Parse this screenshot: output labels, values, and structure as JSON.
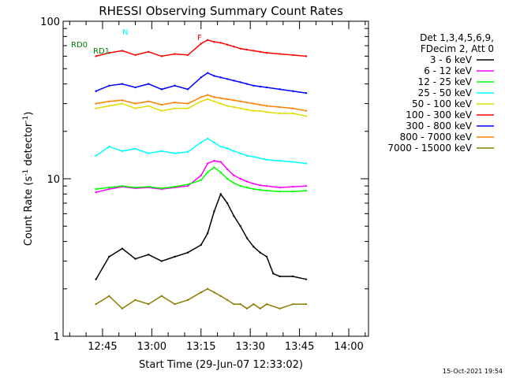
{
  "chart_data": {
    "type": "line",
    "title": "RHESSI Observing Summary Count Rates",
    "xlabel": "Start Time (29-Jun-07 12:33:02)",
    "ylabel_main": "Count Rate (s",
    "ylabel_sup": "-1",
    "ylabel_end": " detector",
    "ylabel_close": ")",
    "yscale": "log",
    "ylim": [
      1,
      100
    ],
    "xlim_minutes": [
      0,
      93
    ],
    "x_tick_labels": [
      "12:45",
      "13:00",
      "13:15",
      "13:30",
      "13:45",
      "14:00"
    ],
    "x_tick_minutes": [
      12,
      27,
      42,
      57,
      72,
      87
    ],
    "y_tick_labels": [
      "1",
      "10",
      "100"
    ],
    "y_tick_values": [
      1,
      10,
      100
    ],
    "legend": {
      "header": [
        "Det 1,3,4,5,6,9,",
        "FDecim 2, Att 0"
      ],
      "placement": "right"
    },
    "series": [
      {
        "name": "3 - 6 keV",
        "color": "#000000",
        "points": [
          [
            10,
            2.3
          ],
          [
            14,
            3.2
          ],
          [
            18,
            3.6
          ],
          [
            22,
            3.1
          ],
          [
            26,
            3.3
          ],
          [
            30,
            3.0
          ],
          [
            34,
            3.2
          ],
          [
            38,
            3.4
          ],
          [
            42,
            3.8
          ],
          [
            44,
            4.5
          ],
          [
            46,
            6.2
          ],
          [
            48,
            8.0
          ],
          [
            50,
            7.0
          ],
          [
            52,
            5.8
          ],
          [
            54,
            5.0
          ],
          [
            56,
            4.2
          ],
          [
            58,
            3.7
          ],
          [
            60,
            3.4
          ],
          [
            62,
            3.2
          ],
          [
            64,
            2.5
          ],
          [
            66,
            2.4
          ],
          [
            70,
            2.4
          ],
          [
            74,
            2.3
          ]
        ]
      },
      {
        "name": "6 - 12 keV",
        "color": "#ff00ff",
        "points": [
          [
            10,
            8.2
          ],
          [
            14,
            8.6
          ],
          [
            18,
            8.9
          ],
          [
            22,
            8.7
          ],
          [
            26,
            8.8
          ],
          [
            30,
            8.6
          ],
          [
            34,
            8.8
          ],
          [
            38,
            9.0
          ],
          [
            42,
            10.5
          ],
          [
            44,
            12.5
          ],
          [
            46,
            13.0
          ],
          [
            48,
            12.8
          ],
          [
            50,
            11.5
          ],
          [
            52,
            10.5
          ],
          [
            54,
            10.0
          ],
          [
            56,
            9.6
          ],
          [
            58,
            9.3
          ],
          [
            60,
            9.1
          ],
          [
            62,
            9.0
          ],
          [
            66,
            8.8
          ],
          [
            70,
            8.9
          ],
          [
            74,
            9.0
          ]
        ]
      },
      {
        "name": "12 - 25 keV",
        "color": "#00ff00",
        "points": [
          [
            10,
            8.6
          ],
          [
            14,
            8.8
          ],
          [
            18,
            9.0
          ],
          [
            22,
            8.8
          ],
          [
            26,
            8.9
          ],
          [
            30,
            8.7
          ],
          [
            34,
            8.9
          ],
          [
            38,
            9.2
          ],
          [
            42,
            9.8
          ],
          [
            44,
            11.0
          ],
          [
            46,
            11.8
          ],
          [
            48,
            11.0
          ],
          [
            50,
            10.0
          ],
          [
            52,
            9.4
          ],
          [
            54,
            9.0
          ],
          [
            56,
            8.8
          ],
          [
            58,
            8.6
          ],
          [
            60,
            8.5
          ],
          [
            62,
            8.4
          ],
          [
            66,
            8.3
          ],
          [
            70,
            8.3
          ],
          [
            74,
            8.4
          ]
        ]
      },
      {
        "name": "25 - 50 keV",
        "color": "#00ffff",
        "points": [
          [
            10,
            14
          ],
          [
            14,
            16
          ],
          [
            18,
            15
          ],
          [
            22,
            15.5
          ],
          [
            26,
            14.5
          ],
          [
            30,
            15
          ],
          [
            34,
            14.5
          ],
          [
            38,
            14.8
          ],
          [
            42,
            17
          ],
          [
            44,
            18
          ],
          [
            46,
            17
          ],
          [
            48,
            16
          ],
          [
            50,
            15.6
          ],
          [
            52,
            15
          ],
          [
            54,
            14.5
          ],
          [
            56,
            14
          ],
          [
            58,
            13.8
          ],
          [
            60,
            13.5
          ],
          [
            62,
            13.2
          ],
          [
            66,
            13
          ],
          [
            70,
            12.8
          ],
          [
            74,
            12.5
          ]
        ]
      },
      {
        "name": "50 - 100 keV",
        "color": "#dddd00",
        "points": [
          [
            10,
            28
          ],
          [
            14,
            29
          ],
          [
            18,
            30
          ],
          [
            22,
            28
          ],
          [
            26,
            29
          ],
          [
            30,
            27
          ],
          [
            34,
            28
          ],
          [
            38,
            28
          ],
          [
            42,
            31
          ],
          [
            44,
            32
          ],
          [
            46,
            31
          ],
          [
            48,
            30
          ],
          [
            50,
            29
          ],
          [
            52,
            28.5
          ],
          [
            54,
            28
          ],
          [
            56,
            27.5
          ],
          [
            58,
            27
          ],
          [
            60,
            27
          ],
          [
            62,
            26.5
          ],
          [
            66,
            26
          ],
          [
            70,
            26
          ],
          [
            74,
            25
          ]
        ]
      },
      {
        "name": "100 - 300 keV",
        "color": "#ff0000",
        "points": [
          [
            10,
            60
          ],
          [
            14,
            63
          ],
          [
            18,
            65
          ],
          [
            22,
            61
          ],
          [
            26,
            64
          ],
          [
            30,
            60
          ],
          [
            34,
            62
          ],
          [
            38,
            61
          ],
          [
            42,
            72
          ],
          [
            44,
            76
          ],
          [
            46,
            74
          ],
          [
            48,
            73
          ],
          [
            50,
            71
          ],
          [
            52,
            69
          ],
          [
            54,
            67
          ],
          [
            56,
            66
          ],
          [
            58,
            65
          ],
          [
            60,
            64
          ],
          [
            62,
            63
          ],
          [
            66,
            62
          ],
          [
            70,
            61
          ],
          [
            74,
            60
          ]
        ]
      },
      {
        "name": "300 - 800 keV",
        "color": "#0000ff",
        "points": [
          [
            10,
            36
          ],
          [
            14,
            39
          ],
          [
            18,
            40
          ],
          [
            22,
            38
          ],
          [
            26,
            40
          ],
          [
            30,
            37
          ],
          [
            34,
            39
          ],
          [
            38,
            37
          ],
          [
            42,
            44
          ],
          [
            44,
            47
          ],
          [
            46,
            45
          ],
          [
            48,
            44
          ],
          [
            50,
            43
          ],
          [
            52,
            42
          ],
          [
            54,
            41
          ],
          [
            56,
            40
          ],
          [
            58,
            39
          ],
          [
            60,
            38.5
          ],
          [
            62,
            38
          ],
          [
            66,
            37
          ],
          [
            70,
            36
          ],
          [
            74,
            35
          ]
        ]
      },
      {
        "name": "800 - 7000 keV",
        "color": "#ff8000",
        "points": [
          [
            10,
            30
          ],
          [
            14,
            31
          ],
          [
            18,
            31.5
          ],
          [
            22,
            30
          ],
          [
            26,
            31
          ],
          [
            30,
            29.5
          ],
          [
            34,
            30.5
          ],
          [
            38,
            30
          ],
          [
            42,
            33
          ],
          [
            44,
            34
          ],
          [
            46,
            33
          ],
          [
            48,
            32.5
          ],
          [
            50,
            32
          ],
          [
            52,
            31.5
          ],
          [
            54,
            31
          ],
          [
            56,
            30.5
          ],
          [
            58,
            30
          ],
          [
            60,
            29.5
          ],
          [
            62,
            29
          ],
          [
            66,
            28.5
          ],
          [
            70,
            28
          ],
          [
            74,
            27
          ]
        ]
      },
      {
        "name": "7000 - 15000 keV",
        "color": "#8b7d00",
        "points": [
          [
            10,
            1.6
          ],
          [
            14,
            1.8
          ],
          [
            18,
            1.5
          ],
          [
            22,
            1.7
          ],
          [
            26,
            1.6
          ],
          [
            30,
            1.8
          ],
          [
            34,
            1.6
          ],
          [
            38,
            1.7
          ],
          [
            42,
            1.9
          ],
          [
            44,
            2.0
          ],
          [
            46,
            1.9
          ],
          [
            48,
            1.8
          ],
          [
            50,
            1.7
          ],
          [
            52,
            1.6
          ],
          [
            54,
            1.6
          ],
          [
            56,
            1.5
          ],
          [
            58,
            1.6
          ],
          [
            60,
            1.5
          ],
          [
            62,
            1.6
          ],
          [
            66,
            1.5
          ],
          [
            70,
            1.6
          ],
          [
            74,
            1.6
          ]
        ]
      }
    ],
    "flags": [
      {
        "label": "N",
        "color": "#00ffff"
      },
      {
        "label": "F",
        "color": "#ff0000"
      },
      {
        "label": "RD0",
        "color": "#008000"
      },
      {
        "label": "RD1",
        "color": "#008000"
      }
    ]
  },
  "footer": {
    "timestamp": "15-Oct-2021 19:54"
  }
}
